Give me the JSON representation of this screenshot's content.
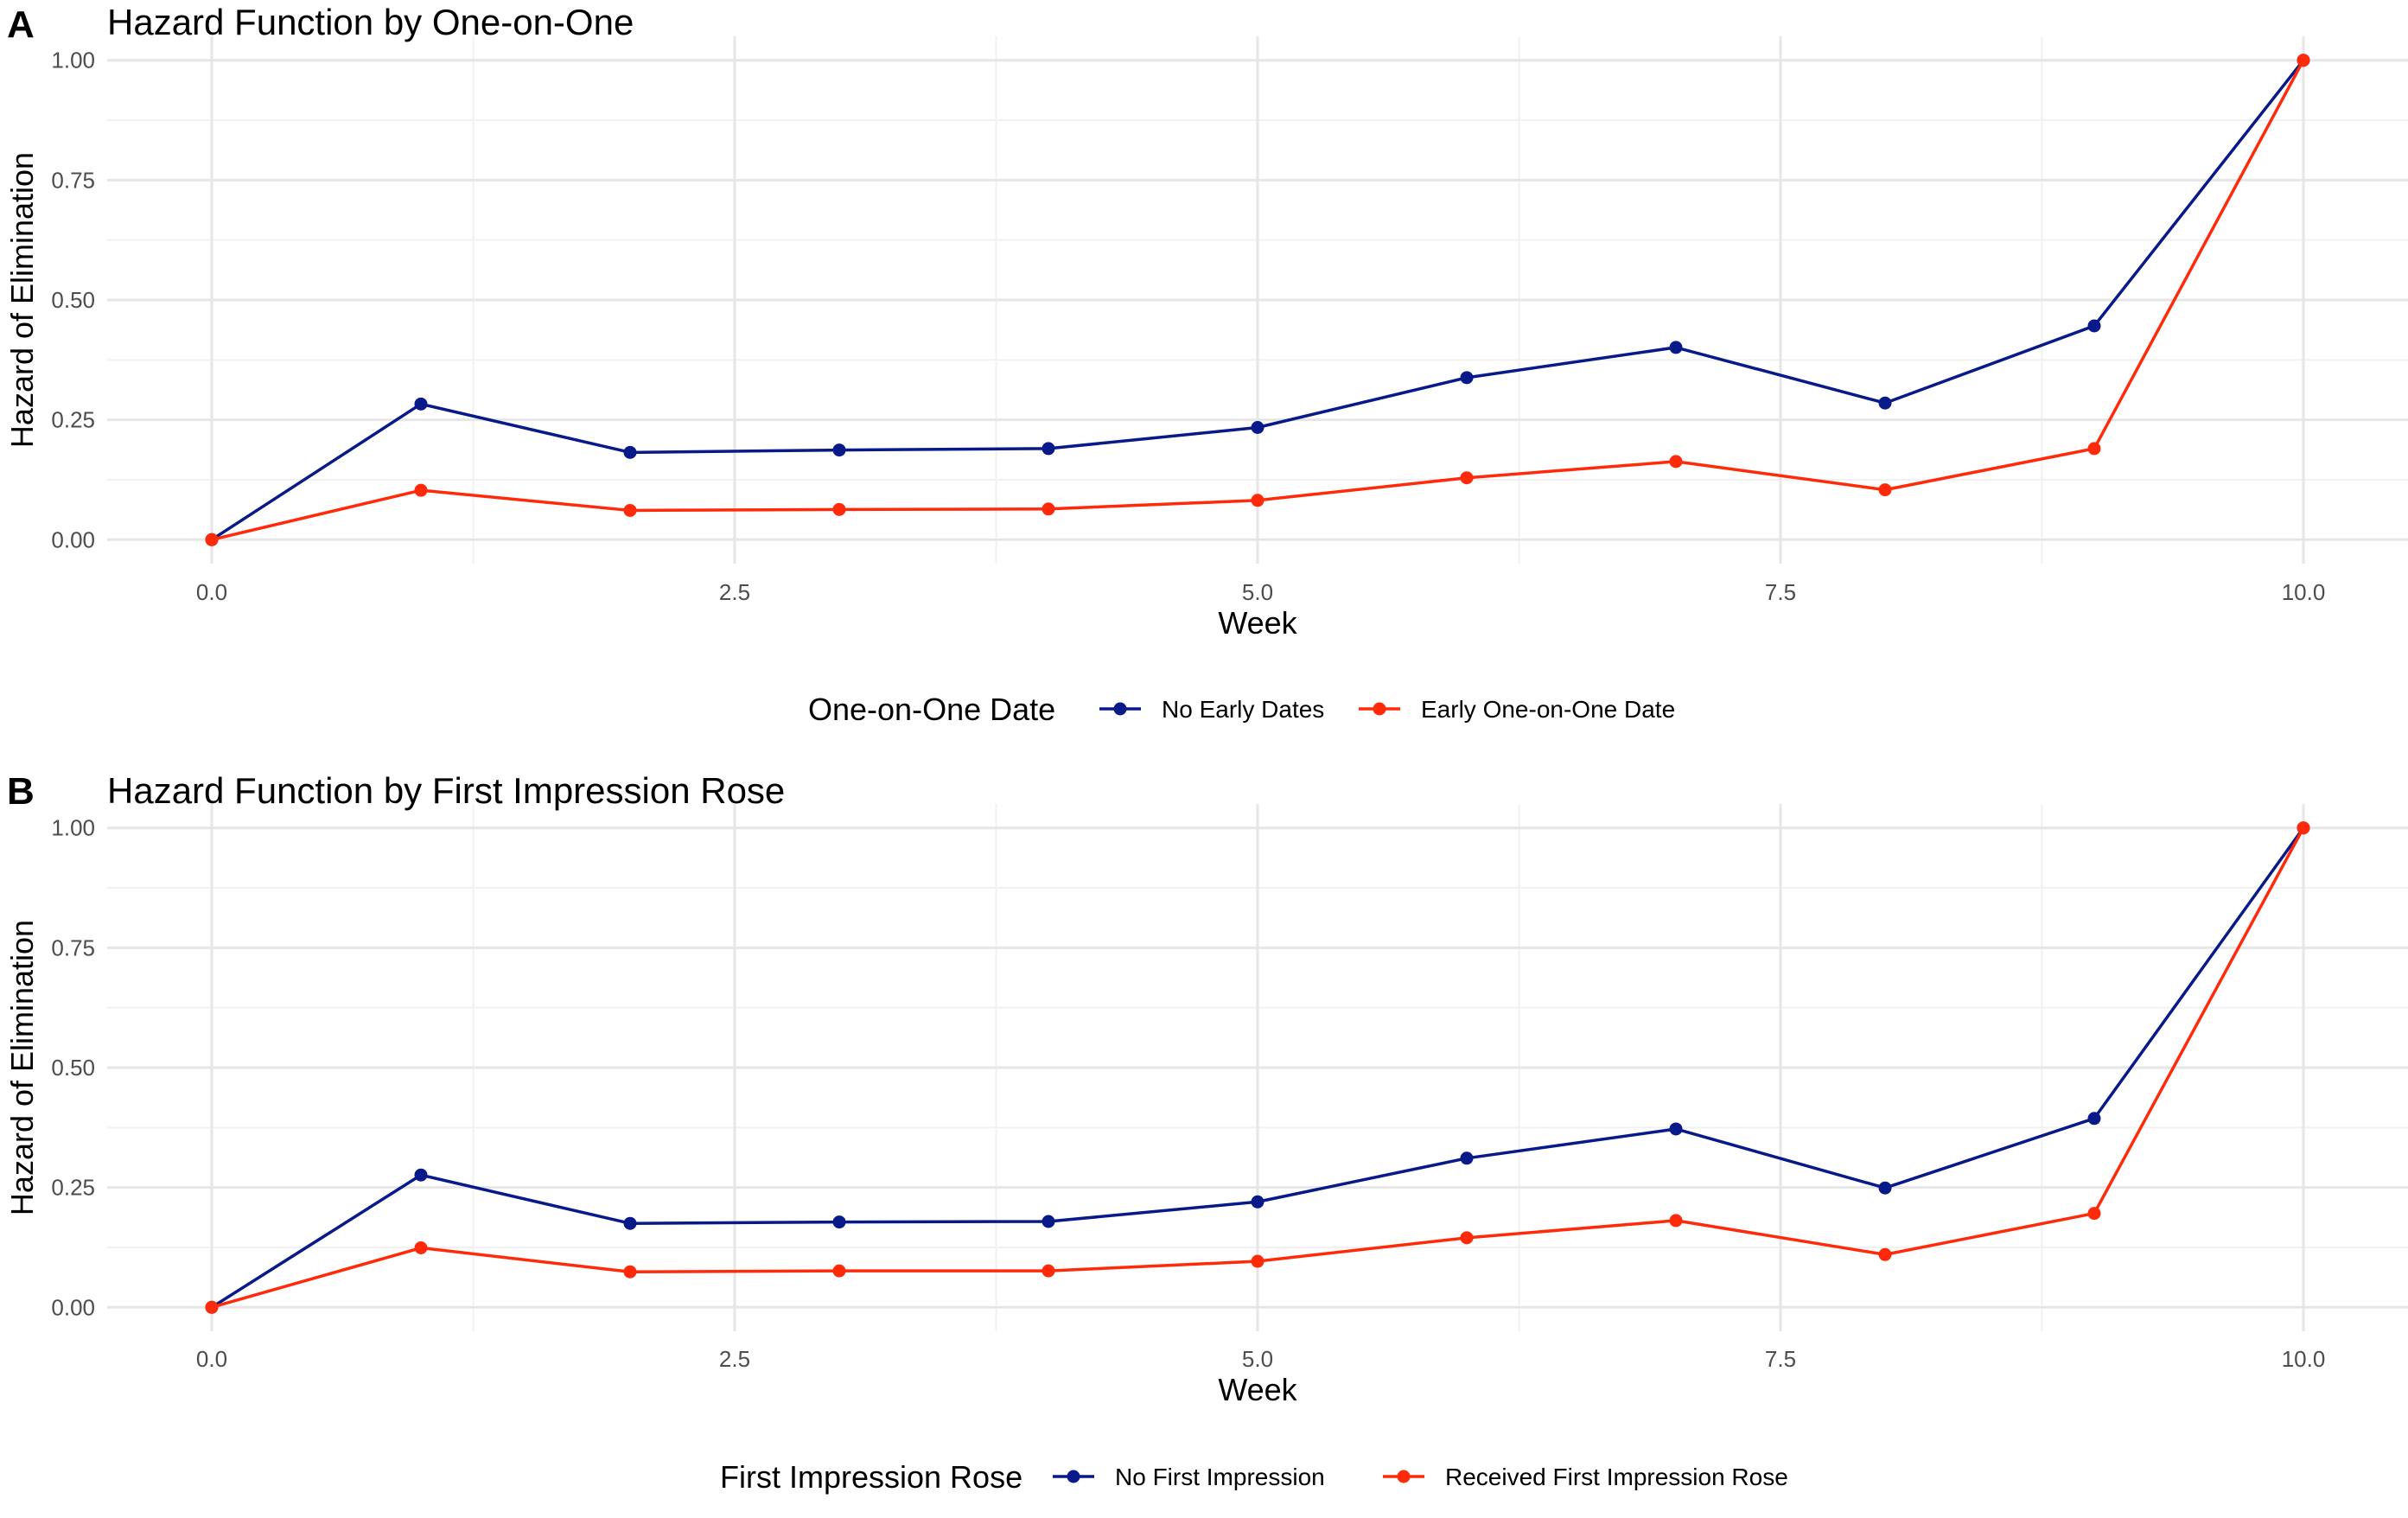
{
  "chart_data": [
    {
      "type": "line",
      "tag": "A",
      "title": "Hazard Function by One-on-One",
      "xlabel": "Week",
      "ylabel": "Hazard of Elimination",
      "xlim": [
        -0.5,
        10.5
      ],
      "ylim": [
        -0.05,
        1.05
      ],
      "x_ticks": [
        0,
        2.5,
        5,
        7.5,
        10
      ],
      "x_tick_labels": [
        "0.0",
        "2.5",
        "5.0",
        "7.5",
        "10.0"
      ],
      "y_ticks": [
        0,
        0.25,
        0.5,
        0.75,
        1
      ],
      "y_tick_labels": [
        "0.00",
        "0.25",
        "0.50",
        "0.75",
        "1.00"
      ],
      "grid": true,
      "legend_title": "One-on-One Date",
      "legend_position": "bottom",
      "x": [
        0,
        1,
        2,
        3,
        4,
        5,
        6,
        7,
        8,
        9,
        10
      ],
      "series": [
        {
          "name": "No Early Dates",
          "color": "#08198a",
          "values": [
            0,
            0.283,
            0.182,
            0.187,
            0.19,
            0.234,
            0.338,
            0.401,
            0.285,
            0.446,
            1.0
          ]
        },
        {
          "name": "Early One-on-One Date",
          "color": "#ff2a0a",
          "values": [
            0,
            0.103,
            0.061,
            0.063,
            0.064,
            0.082,
            0.129,
            0.163,
            0.104,
            0.19,
            1.0
          ]
        }
      ]
    },
    {
      "type": "line",
      "tag": "B",
      "title": "Hazard Function by First Impression Rose",
      "xlabel": "Week",
      "ylabel": "Hazard of Elimination",
      "xlim": [
        -0.5,
        10.5
      ],
      "ylim": [
        -0.05,
        1.05
      ],
      "x_ticks": [
        0,
        2.5,
        5,
        7.5,
        10
      ],
      "x_tick_labels": [
        "0.0",
        "2.5",
        "5.0",
        "7.5",
        "10.0"
      ],
      "y_ticks": [
        0,
        0.25,
        0.5,
        0.75,
        1
      ],
      "y_tick_labels": [
        "0.00",
        "0.25",
        "0.50",
        "0.75",
        "1.00"
      ],
      "grid": true,
      "legend_title": "First Impression Rose",
      "legend_position": "bottom",
      "x": [
        0,
        1,
        2,
        3,
        4,
        5,
        6,
        7,
        8,
        9,
        10
      ],
      "series": [
        {
          "name": "No First Impression",
          "color": "#08198a",
          "values": [
            0,
            0.276,
            0.175,
            0.178,
            0.179,
            0.22,
            0.311,
            0.372,
            0.249,
            0.394,
            1.0
          ]
        },
        {
          "name": "Received First Impression Rose",
          "color": "#ff2a0a",
          "values": [
            0,
            0.124,
            0.074,
            0.076,
            0.076,
            0.096,
            0.145,
            0.181,
            0.11,
            0.196,
            1.0
          ]
        }
      ]
    }
  ]
}
